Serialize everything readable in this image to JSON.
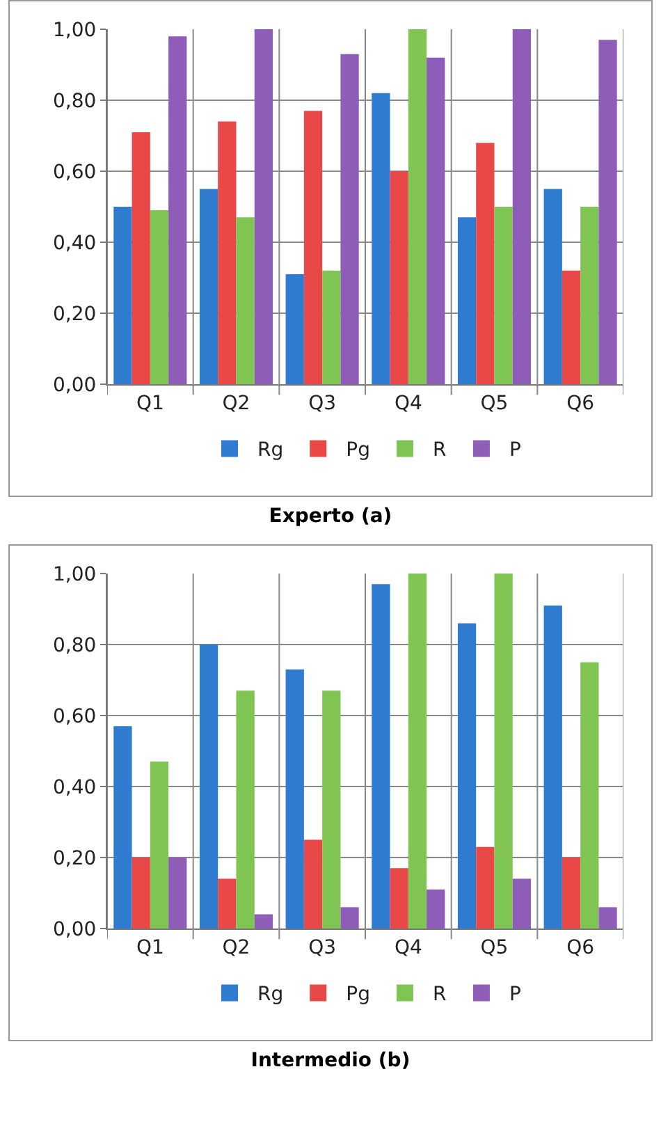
{
  "chart_data": [
    {
      "type": "bar",
      "title": "Experto (a)",
      "categories": [
        "Q1",
        "Q2",
        "Q3",
        "Q4",
        "Q5",
        "Q6"
      ],
      "series": [
        {
          "name": "Rg",
          "color": "#2f7bd0",
          "values": [
            0.5,
            0.55,
            0.31,
            0.82,
            0.47,
            0.55
          ]
        },
        {
          "name": "Pg",
          "color": "#e84848",
          "values": [
            0.71,
            0.74,
            0.77,
            0.6,
            0.68,
            0.32
          ]
        },
        {
          "name": "R",
          "color": "#80c454",
          "values": [
            0.49,
            0.47,
            0.32,
            1.0,
            0.5,
            0.5
          ]
        },
        {
          "name": "P",
          "color": "#8d5db8",
          "values": [
            0.98,
            1.0,
            0.93,
            0.92,
            1.0,
            0.97
          ]
        }
      ],
      "ylim": [
        0,
        1
      ],
      "yticks": [
        {
          "value": 0,
          "label": "0,00"
        },
        {
          "value": 0.2,
          "label": "0,20"
        },
        {
          "value": 0.4,
          "label": "0,40"
        },
        {
          "value": 0.6,
          "label": "0,60"
        },
        {
          "value": 0.8,
          "label": "0,80"
        },
        {
          "value": 1,
          "label": "1,00"
        }
      ],
      "grid": true,
      "legend": "bottom"
    },
    {
      "type": "bar",
      "title": "Intermedio (b)",
      "categories": [
        "Q1",
        "Q2",
        "Q3",
        "Q4",
        "Q5",
        "Q6"
      ],
      "series": [
        {
          "name": "Rg",
          "color": "#2f7bd0",
          "values": [
            0.57,
            0.8,
            0.73,
            0.97,
            0.86,
            0.91
          ]
        },
        {
          "name": "Pg",
          "color": "#e84848",
          "values": [
            0.2,
            0.14,
            0.25,
            0.17,
            0.23,
            0.2
          ]
        },
        {
          "name": "R",
          "color": "#80c454",
          "values": [
            0.47,
            0.67,
            0.67,
            1.0,
            1.0,
            0.75
          ]
        },
        {
          "name": "P",
          "color": "#8d5db8",
          "values": [
            0.2,
            0.04,
            0.06,
            0.11,
            0.14,
            0.06
          ]
        }
      ],
      "ylim": [
        0,
        1
      ],
      "yticks": [
        {
          "value": 0,
          "label": "0,00"
        },
        {
          "value": 0.2,
          "label": "0,20"
        },
        {
          "value": 0.4,
          "label": "0,40"
        },
        {
          "value": 0.6,
          "label": "0,60"
        },
        {
          "value": 0.8,
          "label": "0,80"
        },
        {
          "value": 1,
          "label": "1,00"
        }
      ],
      "grid": true,
      "legend": "bottom"
    }
  ]
}
